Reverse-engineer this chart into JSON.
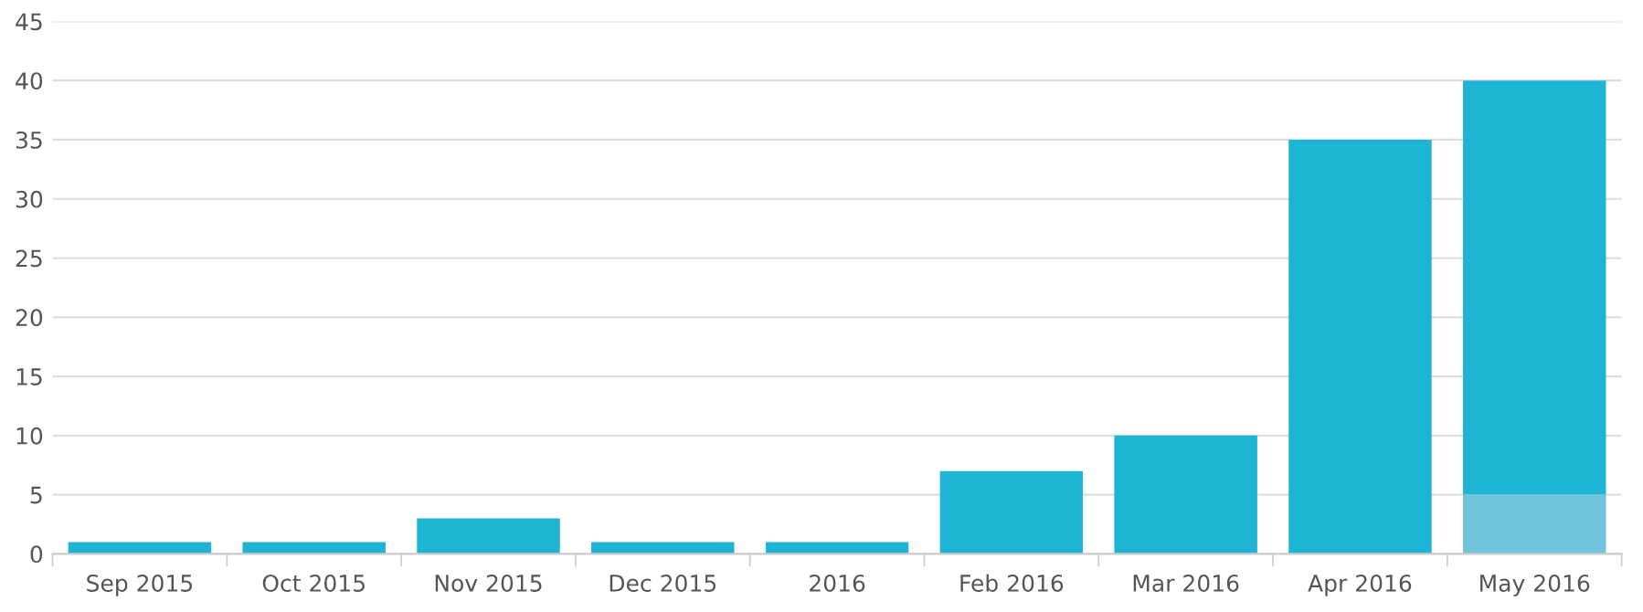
{
  "chart_data": {
    "type": "bar",
    "stacked": true,
    "categories": [
      "Sep 2015",
      "Oct 2015",
      "Nov 2015",
      "Dec 2015",
      "2016",
      "Feb 2016",
      "Mar 2016",
      "Apr 2016",
      "May 2016"
    ],
    "series": [
      {
        "color": "#70c4dc",
        "values": [
          null,
          null,
          null,
          null,
          null,
          null,
          null,
          null,
          5
        ]
      },
      {
        "color": "#1eb4d4",
        "values": [
          1,
          1,
          3,
          1,
          1,
          7,
          10,
          35,
          35
        ]
      }
    ],
    "ylim": [
      0,
      45
    ],
    "yticks": [
      0,
      5,
      10,
      15,
      20,
      25,
      30,
      35,
      40,
      45
    ],
    "grid": "y"
  }
}
